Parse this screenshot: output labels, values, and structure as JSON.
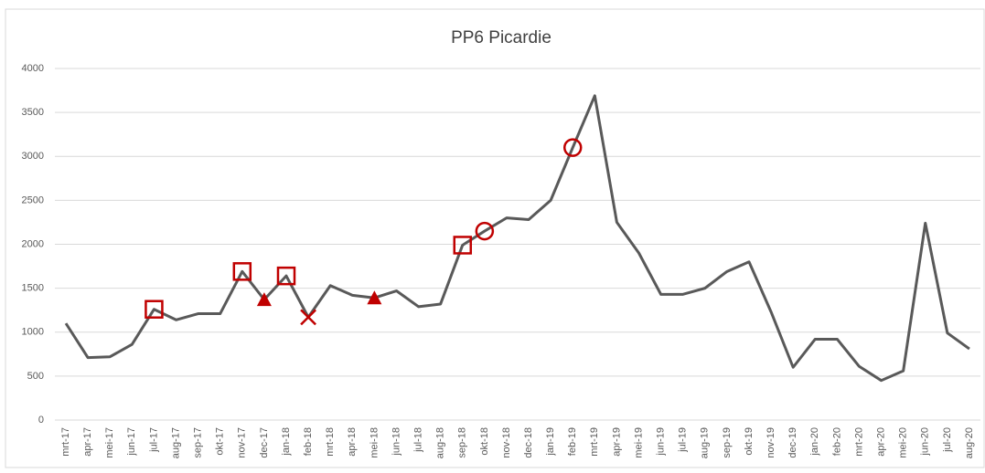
{
  "chart_data": {
    "type": "line",
    "title": "PP6 Picardie",
    "categories": [
      "mrt-17",
      "apr-17",
      "mei-17",
      "jun-17",
      "jul-17",
      "aug-17",
      "sep-17",
      "okt-17",
      "nov-17",
      "dec-17",
      "jan-18",
      "feb-18",
      "mrt-18",
      "apr-18",
      "mei-18",
      "jun-18",
      "jul-18",
      "aug-18",
      "sep-18",
      "okt-18",
      "nov-18",
      "dec-18",
      "jan-19",
      "feb-19",
      "mrt-19",
      "apr-19",
      "mei-19",
      "jun-19",
      "jul-19",
      "aug-19",
      "sep-19",
      "okt-19",
      "nov-19",
      "dec-19",
      "jan-20",
      "feb-20",
      "mrt-20",
      "apr-20",
      "mei-20",
      "jun-20",
      "jul-20",
      "aug-20"
    ],
    "values": [
      1100,
      710,
      720,
      860,
      1260,
      1140,
      1210,
      1210,
      1690,
      1370,
      1640,
      1170,
      1530,
      1420,
      1390,
      1470,
      1290,
      1320,
      1990,
      2150,
      2300,
      2280,
      2500,
      3100,
      3690,
      2250,
      1900,
      1430,
      1430,
      1500,
      1690,
      1800,
      1230,
      600,
      920,
      920,
      610,
      450,
      560,
      2240,
      990,
      810
    ],
    "color": "#595959",
    "markers": [
      {
        "symbol": "square",
        "color": "#c00000",
        "values": [
          null,
          null,
          null,
          null,
          1260,
          null,
          null,
          null,
          1690,
          null,
          1640,
          null,
          null,
          null,
          null,
          null,
          null,
          null,
          1990,
          null,
          null,
          null,
          null,
          null,
          null,
          null,
          null,
          null,
          null,
          null,
          null,
          null,
          null,
          null,
          null,
          null,
          null,
          null,
          null,
          null,
          null,
          null
        ]
      },
      {
        "symbol": "triangle",
        "color": "#c00000",
        "values": [
          null,
          null,
          null,
          null,
          null,
          null,
          null,
          null,
          null,
          1370,
          null,
          null,
          null,
          null,
          1390,
          null,
          null,
          null,
          null,
          null,
          null,
          null,
          null,
          null,
          null,
          null,
          null,
          null,
          null,
          null,
          null,
          null,
          null,
          null,
          null,
          null,
          null,
          null,
          null,
          null,
          null,
          null
        ]
      },
      {
        "symbol": "cross",
        "color": "#c00000",
        "values": [
          null,
          null,
          null,
          null,
          null,
          null,
          null,
          null,
          null,
          null,
          null,
          1170,
          null,
          null,
          null,
          null,
          null,
          null,
          null,
          null,
          null,
          null,
          null,
          null,
          null,
          null,
          null,
          null,
          null,
          null,
          null,
          null,
          null,
          null,
          null,
          null,
          null,
          null,
          null,
          null,
          null,
          null
        ]
      },
      {
        "symbol": "circle",
        "color": "#c00000",
        "values": [
          null,
          null,
          null,
          null,
          null,
          null,
          null,
          null,
          null,
          null,
          null,
          null,
          null,
          null,
          null,
          null,
          null,
          null,
          null,
          2150,
          null,
          null,
          null,
          3100,
          null,
          null,
          null,
          null,
          null,
          null,
          null,
          null,
          null,
          null,
          null,
          null,
          null,
          null,
          null,
          null,
          null,
          null
        ]
      }
    ],
    "ylim": [
      0,
      4000
    ],
    "yticks": [
      0,
      500,
      1000,
      1500,
      2000,
      2500,
      3000,
      3500,
      4000
    ],
    "grid": true
  }
}
